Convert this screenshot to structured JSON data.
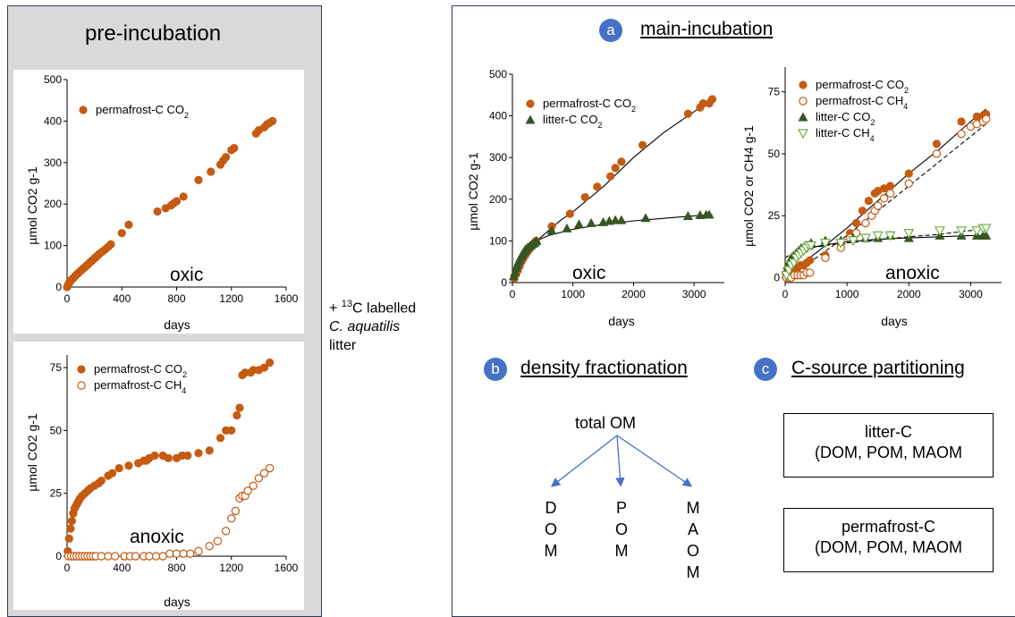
{
  "pre_title": "pre-incubation",
  "addition": {
    "l1_pre": "+ ",
    "l1_sup": "13",
    "l1_post": "C labelled",
    "l2": "C. aquatilis",
    "l3": "litter"
  },
  "main": {
    "badge_a": "a",
    "title": "main-incubation",
    "badge_b": "b",
    "density_title": "density fractionation",
    "badge_c": "c",
    "partition_title": "C-source partitioning",
    "total_om": "total OM",
    "fractions": [
      [
        "D",
        "O",
        "M"
      ],
      [
        "P",
        "O",
        "M"
      ],
      [
        "M",
        "A",
        "O",
        "M"
      ]
    ],
    "box1": [
      "litter-C",
      "(DOM, POM, MAOM"
    ],
    "box2": [
      "permafrost-C",
      "(DOM, POM, MAOM"
    ]
  },
  "colors": {
    "permafrost": "#c55a11",
    "litter": "#375623",
    "litter_ch4": "#70ad47",
    "badge": "#4472c4",
    "arrow": "#4472c4",
    "panel_bg": "#d9d9d9",
    "border": "#2f3e55"
  },
  "chart_data": [
    {
      "id": "pre_oxic",
      "type": "scatter",
      "label": "oxic",
      "xlabel": "days",
      "ylabel": "µmol CO2 g-1",
      "xlim": [
        0,
        1600
      ],
      "ylim": [
        0,
        500
      ],
      "xticks": [
        0,
        400,
        800,
        1200,
        1600
      ],
      "yticks": [
        0,
        100,
        200,
        300,
        400,
        500
      ],
      "series": [
        {
          "name": "permafrost-C CO2",
          "marker": "filled-circle",
          "color": "#c55a11",
          "x": [
            0,
            5,
            10,
            15,
            20,
            30,
            40,
            50,
            60,
            70,
            80,
            90,
            100,
            110,
            120,
            130,
            140,
            150,
            160,
            170,
            180,
            190,
            200,
            210,
            220,
            230,
            240,
            260,
            280,
            300,
            320,
            400,
            450,
            660,
            720,
            760,
            780,
            800,
            850,
            960,
            1050,
            1120,
            1140,
            1160,
            1200,
            1220,
            1380,
            1400,
            1440,
            1460,
            1480,
            1500
          ],
          "y": [
            0,
            3,
            7,
            10,
            13,
            17,
            20,
            23,
            27,
            30,
            33,
            36,
            39,
            42,
            45,
            48,
            51,
            54,
            57,
            60,
            63,
            66,
            69,
            72,
            75,
            78,
            81,
            86,
            91,
            97,
            103,
            130,
            150,
            182,
            190,
            197,
            202,
            207,
            218,
            258,
            278,
            295,
            305,
            313,
            330,
            335,
            370,
            378,
            385,
            392,
            396,
            400
          ]
        }
      ]
    },
    {
      "id": "pre_anoxic",
      "type": "scatter",
      "label": "anoxic",
      "xlabel": "days",
      "ylabel": "µmol CO2 g-1",
      "xlim": [
        0,
        1600
      ],
      "ylim": [
        0,
        80
      ],
      "xticks": [
        0,
        400,
        800,
        1200,
        1600
      ],
      "yticks": [
        0,
        25,
        50,
        75
      ],
      "series": [
        {
          "name": "permafrost-C CO2",
          "marker": "filled-circle",
          "color": "#c55a11",
          "x": [
            5,
            15,
            25,
            35,
            45,
            55,
            65,
            75,
            85,
            95,
            110,
            130,
            150,
            170,
            200,
            230,
            250,
            300,
            330,
            380,
            450,
            520,
            560,
            580,
            600,
            640,
            700,
            740,
            800,
            840,
            880,
            960,
            1040,
            1120,
            1160,
            1200,
            1240,
            1260,
            1280,
            1300,
            1340,
            1360,
            1400,
            1440,
            1480
          ],
          "y": [
            2,
            7,
            11,
            14,
            17,
            19,
            20,
            21,
            22,
            23,
            24,
            25,
            26,
            27,
            28,
            29,
            30,
            32,
            33,
            35,
            36,
            37,
            38,
            38,
            39,
            40,
            40,
            39,
            39,
            40,
            40,
            41,
            42,
            47,
            50,
            50,
            56,
            59,
            72,
            73,
            73,
            74,
            74,
            75,
            77
          ]
        },
        {
          "name": "permafrost-C CH4",
          "marker": "open-circle",
          "color": "#c55a11",
          "x": [
            10,
            30,
            50,
            70,
            90,
            110,
            130,
            150,
            170,
            190,
            210,
            250,
            300,
            350,
            420,
            460,
            500,
            560,
            600,
            650,
            700,
            750,
            800,
            850,
            900,
            960,
            1040,
            1100,
            1160,
            1200,
            1230,
            1260,
            1280,
            1300,
            1320,
            1360,
            1400,
            1440,
            1480
          ],
          "y": [
            0,
            0,
            0,
            0,
            0,
            0,
            0,
            0,
            0,
            0,
            0,
            0,
            0,
            0,
            0,
            0,
            0,
            0,
            0,
            0,
            0,
            1,
            1,
            1,
            1,
            2,
            4,
            6,
            10,
            15,
            18,
            23,
            24,
            24,
            26,
            28,
            31,
            33,
            35
          ]
        }
      ]
    },
    {
      "id": "main_oxic",
      "type": "scatter",
      "label": "oxic",
      "xlabel": "days",
      "ylabel": "µmol CO2 g-1",
      "xlim": [
        0,
        3500
      ],
      "ylim": [
        0,
        500
      ],
      "xticks": [
        0,
        1000,
        2000,
        3000
      ],
      "yticks": [
        0,
        100,
        200,
        300,
        400,
        500
      ],
      "series": [
        {
          "name": "permafrost-C CO2",
          "marker": "filled-circle",
          "color": "#c55a11",
          "x": [
            30,
            60,
            90,
            120,
            150,
            180,
            210,
            240,
            270,
            300,
            330,
            360,
            390,
            650,
            950,
            1200,
            1400,
            1620,
            1700,
            1800,
            2150,
            2900,
            3100,
            3150,
            3250,
            3300
          ],
          "y": [
            10,
            20,
            30,
            40,
            50,
            58,
            65,
            72,
            78,
            84,
            90,
            95,
            100,
            135,
            165,
            205,
            230,
            255,
            275,
            290,
            330,
            405,
            420,
            430,
            430,
            440
          ]
        },
        {
          "name": "litter-C CO2",
          "marker": "filled-triangle",
          "color": "#375623",
          "x": [
            20,
            40,
            60,
            80,
            100,
            120,
            140,
            160,
            180,
            200,
            220,
            250,
            280,
            310,
            340,
            370,
            400,
            650,
            900,
            1100,
            1300,
            1500,
            1600,
            1700,
            1800,
            2200,
            2900,
            3100,
            3200,
            3250
          ],
          "y": [
            15,
            25,
            35,
            42,
            50,
            56,
            62,
            67,
            72,
            76,
            80,
            84,
            87,
            90,
            93,
            96,
            100,
            125,
            130,
            140,
            143,
            145,
            148,
            150,
            150,
            155,
            160,
            162,
            163,
            163
          ]
        },
        {
          "name": "permafrost-C CO2 fit",
          "kind": "line",
          "style": "solid",
          "x": [
            0,
            200,
            400,
            600,
            800,
            1000,
            1500,
            2000,
            2500,
            3000,
            3300
          ],
          "y": [
            0,
            60,
            100,
            125,
            150,
            170,
            230,
            300,
            360,
            410,
            440
          ]
        },
        {
          "name": "litter-C CO2 fit",
          "kind": "line",
          "style": "solid",
          "x": [
            0,
            100,
            200,
            300,
            400,
            600,
            1000,
            1500,
            2000,
            2500,
            3000,
            3300
          ],
          "y": [
            0,
            45,
            70,
            88,
            100,
            113,
            128,
            140,
            148,
            154,
            160,
            163
          ]
        }
      ]
    },
    {
      "id": "main_anoxic",
      "type": "scatter",
      "label": "anoxic",
      "xlabel": "days",
      "ylabel": "µmol CO2 or CH4 g-1",
      "xlim": [
        0,
        3500
      ],
      "ylim": [
        -2,
        85
      ],
      "xticks": [
        0,
        1000,
        2000,
        3000
      ],
      "yticks": [
        0,
        25,
        50,
        75
      ],
      "series": [
        {
          "name": "permafrost-C CO2",
          "marker": "filled-circle",
          "color": "#c55a11",
          "x": [
            20,
            60,
            100,
            150,
            200,
            250,
            300,
            350,
            400,
            650,
            900,
            1050,
            1150,
            1250,
            1350,
            1450,
            1500,
            1600,
            1700,
            2000,
            2450,
            2850,
            3100,
            3200,
            3250
          ],
          "y": [
            1,
            2,
            3,
            4,
            4,
            5,
            5,
            6,
            7,
            9,
            14,
            18,
            22,
            27,
            31,
            34,
            35,
            36,
            37,
            42,
            54,
            63,
            65,
            65,
            66
          ]
        },
        {
          "name": "permafrost-C CH4",
          "marker": "open-circle",
          "color": "#c55a11",
          "x": [
            20,
            60,
            100,
            150,
            200,
            250,
            300,
            350,
            400,
            650,
            900,
            1050,
            1150,
            1300,
            1400,
            1450,
            1500,
            1600,
            1700,
            2000,
            2450,
            2850,
            3000,
            3100,
            3200,
            3250
          ],
          "y": [
            0,
            0,
            0,
            1,
            1,
            1,
            1,
            2,
            2,
            8,
            12,
            16,
            18,
            22,
            25,
            27,
            29,
            32,
            34,
            38,
            50,
            58,
            61,
            62,
            63,
            64
          ]
        },
        {
          "name": "litter-C CO2",
          "marker": "filled-triangle",
          "color": "#375623",
          "x": [
            20,
            40,
            60,
            80,
            100,
            140,
            180,
            220,
            260,
            300,
            340,
            380,
            420,
            650,
            900,
            1100,
            1300,
            1500,
            1700,
            2000,
            2500,
            2850,
            3100,
            3200,
            3250
          ],
          "y": [
            3,
            5,
            6,
            7,
            8,
            9,
            10,
            11,
            12,
            12,
            13,
            13,
            14,
            15,
            15,
            16,
            16,
            16,
            17,
            16,
            17,
            17,
            17,
            17,
            17
          ]
        },
        {
          "name": "litter-C CH4",
          "marker": "open-triangle-down",
          "color": "#70ad47",
          "x": [
            20,
            60,
            100,
            140,
            180,
            220,
            260,
            300,
            340,
            380,
            420,
            650,
            900,
            1100,
            1300,
            1500,
            1700,
            2000,
            2500,
            2850,
            3100,
            3200,
            3250
          ],
          "y": [
            1,
            3,
            5,
            6,
            8,
            9,
            10,
            11,
            12,
            13,
            13,
            14,
            14,
            15,
            16,
            17,
            17,
            18,
            19,
            19,
            19,
            20,
            20
          ]
        },
        {
          "name": "permafrost-C CO2 fit",
          "kind": "line",
          "style": "solid",
          "x": [
            0,
            500,
            1000,
            1500,
            2000,
            2500,
            3000,
            3250
          ],
          "y": [
            1,
            10,
            20,
            31,
            42,
            52,
            63,
            68
          ]
        },
        {
          "name": "permafrost-C CH4 fit",
          "kind": "line",
          "style": "dashed",
          "x": [
            0,
            500,
            1000,
            1500,
            2000,
            2500,
            3000,
            3250
          ],
          "y": [
            -1,
            8,
            17,
            27,
            37,
            47,
            57,
            62
          ]
        },
        {
          "name": "litter-C CO2 fit",
          "kind": "line",
          "style": "solid",
          "x": [
            0,
            100,
            200,
            400,
            600,
            1000,
            1500,
            2000,
            2500,
            3000,
            3250
          ],
          "y": [
            0,
            6,
            9,
            12,
            13,
            14.5,
            15.5,
            16,
            16.5,
            17,
            17
          ]
        },
        {
          "name": "litter-C CH4 fit",
          "kind": "line",
          "style": "dashed",
          "x": [
            0,
            200,
            400,
            800,
            1200,
            1600,
            2000,
            2500,
            3000,
            3250
          ],
          "y": [
            8,
            11,
            12,
            13.5,
            14.5,
            15.5,
            16.5,
            17.5,
            19,
            19.5
          ]
        }
      ]
    }
  ]
}
